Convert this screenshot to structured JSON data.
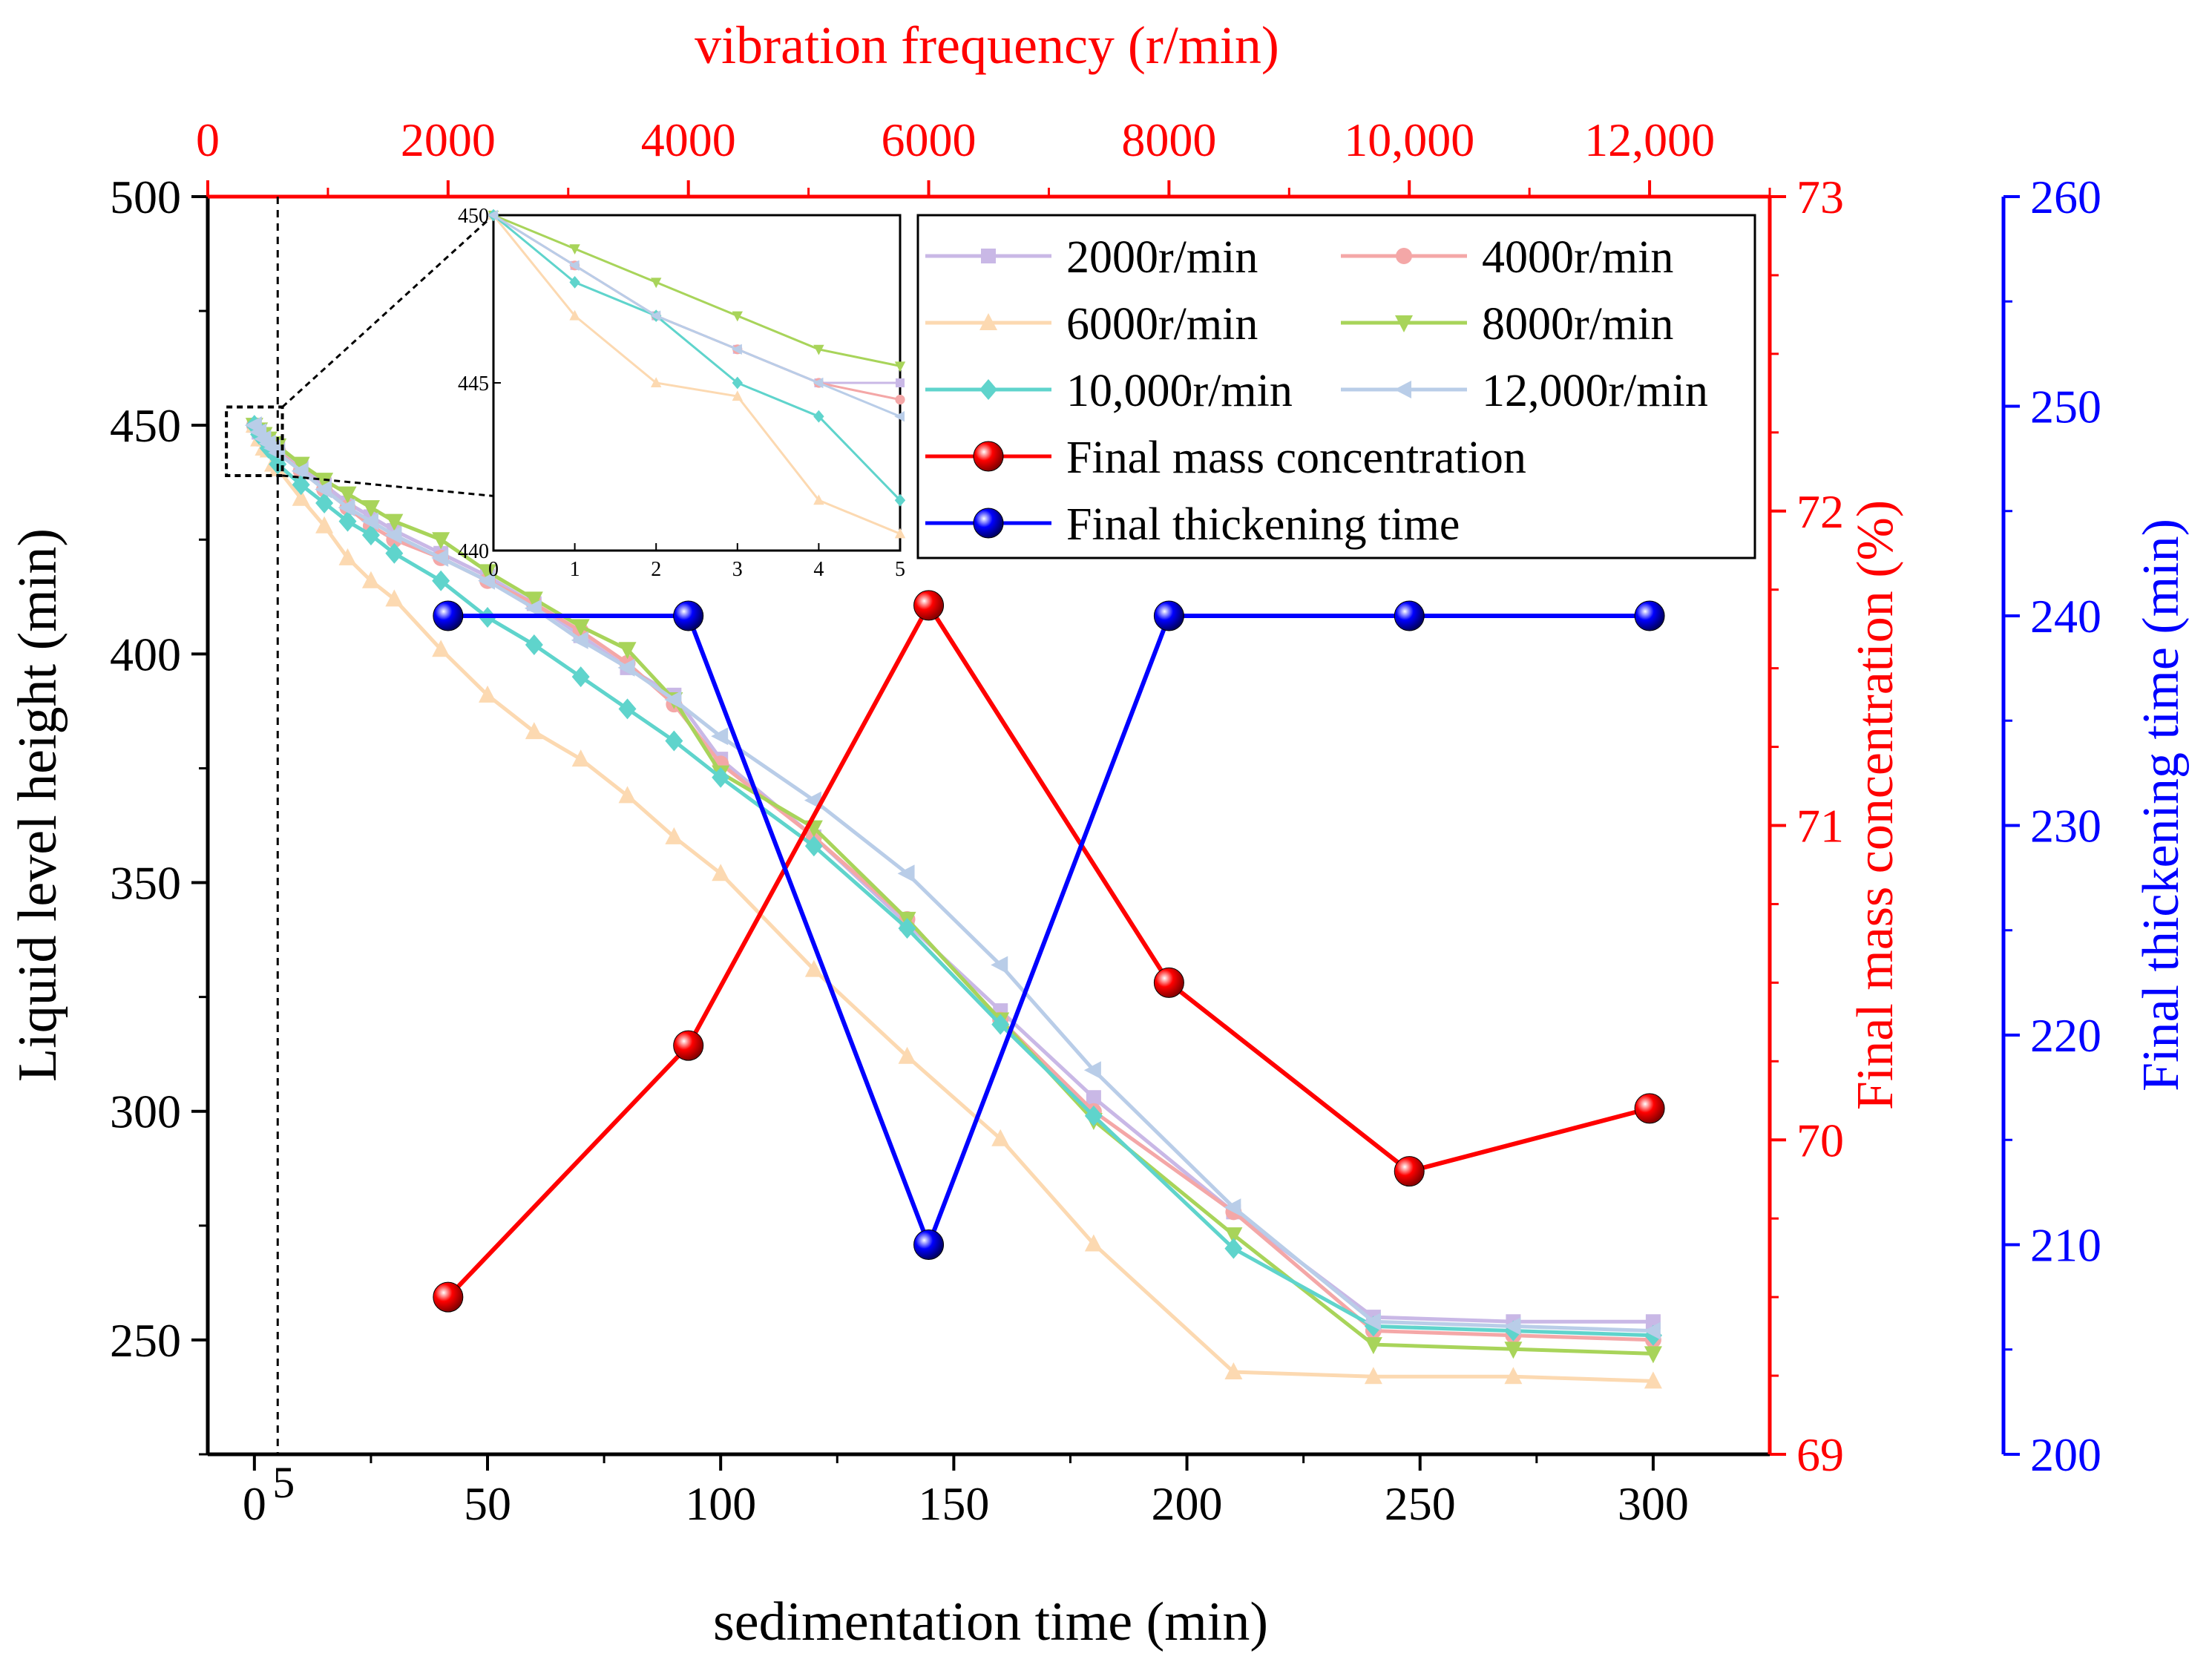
{
  "chart_data": {
    "type": "line",
    "title": "",
    "xlabel": "sedimentation time (min)",
    "ylabel": "Liquid level height (min)",
    "xlim": [
      -10,
      325
    ],
    "ylim": [
      225,
      500
    ],
    "xticks": [
      0,
      50,
      100,
      150,
      200,
      250,
      300
    ],
    "yticks": [
      250,
      300,
      350,
      400,
      450,
      500
    ],
    "xtick_labels": [
      "0",
      "50",
      "100",
      "150",
      "200",
      "250",
      "300"
    ],
    "ytick_labels": [
      "250",
      "300",
      "350",
      "400",
      "450",
      "500"
    ],
    "marker_annotation": {
      "x": 5,
      "label": "5"
    },
    "top_axis": {
      "label": "vibration frequency (r/min)",
      "range": [
        0,
        13000
      ],
      "ticks": [
        0,
        2000,
        4000,
        6000,
        8000,
        10000,
        12000
      ],
      "tick_labels": [
        "0",
        "2000",
        "4000",
        "6000",
        "8000",
        "10,000",
        "12,000"
      ],
      "color": "#ff0000"
    },
    "right_axis_1": {
      "label": "Final mass concentration (%)",
      "range": [
        69,
        73
      ],
      "ticks": [
        69,
        70,
        71,
        72,
        73
      ],
      "tick_labels": [
        "69",
        "70",
        "71",
        "72",
        "73"
      ],
      "color": "#ff0000"
    },
    "right_axis_2": {
      "label": "Final thickening time (min)",
      "range": [
        200,
        260
      ],
      "ticks": [
        200,
        210,
        220,
        230,
        240,
        250,
        260
      ],
      "tick_labels": [
        "200",
        "210",
        "220",
        "230",
        "240",
        "250",
        "260"
      ],
      "color": "#0000ff"
    },
    "series": [
      {
        "name": "2000r/min",
        "color": "#c9b8e6",
        "marker": "square",
        "x": [
          0,
          1,
          2,
          3,
          4,
          5,
          10,
          15,
          20,
          25,
          30,
          40,
          50,
          60,
          70,
          80,
          90,
          100,
          120,
          140,
          160,
          180,
          210,
          240,
          270,
          300
        ],
        "y": [
          450,
          448.5,
          447,
          446,
          445,
          445,
          441,
          437,
          433,
          430,
          427,
          422,
          417,
          411,
          404,
          397,
          391,
          377,
          360,
          341,
          322,
          303,
          278,
          255,
          254,
          254
        ]
      },
      {
        "name": "4000r/min",
        "color": "#f4a7a7",
        "marker": "circle",
        "x": [
          0,
          1,
          2,
          3,
          4,
          5,
          10,
          15,
          20,
          25,
          30,
          40,
          50,
          60,
          70,
          80,
          90,
          100,
          120,
          140,
          160,
          180,
          210,
          240,
          270,
          300
        ],
        "y": [
          450,
          448.5,
          447,
          446,
          445,
          444.5,
          440,
          436,
          432,
          428,
          425,
          421,
          416,
          411,
          405,
          398,
          389,
          376,
          360,
          342,
          320,
          300,
          278,
          252,
          251,
          250
        ]
      },
      {
        "name": "6000r/min",
        "color": "#fcd9b1",
        "marker": "triangle-up",
        "x": [
          0,
          1,
          2,
          3,
          4,
          5,
          10,
          15,
          20,
          25,
          30,
          40,
          50,
          60,
          70,
          80,
          90,
          100,
          120,
          140,
          160,
          180,
          210,
          240,
          270,
          300
        ],
        "y": [
          450,
          447,
          445,
          444.6,
          441.5,
          440.5,
          434,
          428,
          421,
          416,
          412,
          401,
          391,
          383,
          377,
          369,
          360,
          352,
          331,
          312,
          294,
          271,
          243,
          242,
          242,
          241
        ]
      },
      {
        "name": "8000r/min",
        "color": "#a8d45a",
        "marker": "triangle-down",
        "x": [
          0,
          1,
          2,
          3,
          4,
          5,
          10,
          15,
          20,
          25,
          30,
          40,
          50,
          60,
          70,
          80,
          90,
          100,
          120,
          140,
          160,
          180,
          210,
          240,
          270,
          300
        ],
        "y": [
          450,
          449,
          448,
          447,
          446,
          445.5,
          441.5,
          438,
          435,
          432,
          429,
          425,
          418,
          412,
          406,
          401,
          390,
          374,
          362,
          342,
          320,
          298,
          273,
          249,
          248,
          247
        ]
      },
      {
        "name": "10,000r/min",
        "color": "#5fd4cc",
        "marker": "diamond",
        "x": [
          0,
          1,
          2,
          3,
          4,
          5,
          10,
          15,
          20,
          25,
          30,
          40,
          50,
          60,
          70,
          80,
          90,
          100,
          120,
          140,
          160,
          180,
          210,
          240,
          270,
          300
        ],
        "y": [
          450,
          448,
          447,
          445,
          444,
          441.5,
          437,
          433,
          429,
          426,
          422,
          416,
          408,
          402,
          395,
          388,
          381,
          373,
          358,
          340,
          319,
          299,
          270,
          253,
          252,
          251
        ]
      },
      {
        "name": "12,000r/min",
        "color": "#b9cde8",
        "marker": "triangle-left",
        "x": [
          0,
          1,
          2,
          3,
          4,
          5,
          10,
          15,
          20,
          25,
          30,
          40,
          50,
          60,
          70,
          80,
          90,
          100,
          120,
          140,
          160,
          180,
          210,
          240,
          270,
          300
        ],
        "y": [
          450,
          448.5,
          447,
          446,
          445,
          444,
          440,
          436,
          432,
          429,
          426,
          421,
          416,
          410,
          403,
          397,
          390,
          382,
          368,
          352,
          332,
          309,
          279,
          254,
          253,
          252
        ]
      },
      {
        "name": "Final mass concentration",
        "color": "#ff0000",
        "marker": "ball",
        "axis": "right_axis_1",
        "x": [
          2000,
          4000,
          6000,
          8000,
          10000,
          12000
        ],
        "y": [
          69.5,
          70.3,
          71.7,
          70.5,
          69.9,
          70.1
        ]
      },
      {
        "name": "Final thickening time",
        "color": "#0000ff",
        "marker": "ball",
        "axis": "right_axis_2",
        "x": [
          2000,
          4000,
          6000,
          8000,
          10000,
          12000
        ],
        "y": [
          240,
          240,
          210,
          240,
          240,
          240
        ]
      }
    ],
    "inset": {
      "xlim": [
        0,
        5
      ],
      "ylim": [
        440,
        450
      ],
      "xticks": [
        0,
        1,
        2,
        3,
        4,
        5
      ],
      "yticks": [
        440,
        445,
        450
      ],
      "xtick_labels": [
        "0",
        "1",
        "2",
        "3",
        "4",
        "5"
      ],
      "ytick_labels": [
        "440",
        "445",
        "450"
      ]
    },
    "legend_position": "top-right"
  }
}
